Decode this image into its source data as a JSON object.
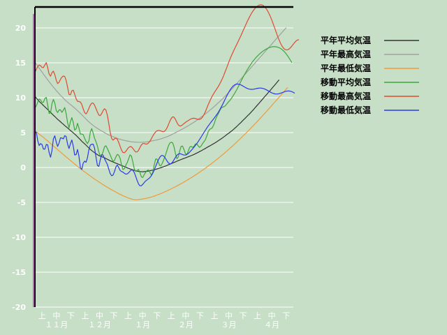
{
  "chart_data": {
    "type": "line",
    "ylim": [
      -20,
      23
    ],
    "yticks": [
      -20,
      -15,
      -10,
      -5,
      0,
      5,
      10,
      15,
      20
    ],
    "x_day_count": 183,
    "x_sub_labels": [
      "上",
      "中",
      "下",
      "上",
      "中",
      "下",
      "上",
      "中",
      "下",
      "上",
      "中",
      "下",
      "上",
      "中",
      "下",
      "上",
      "中",
      "下"
    ],
    "x_month_labels": [
      "１１月",
      "１２月",
      "１月",
      "２月",
      "３月",
      "４月"
    ],
    "legend_position": "right",
    "series": [
      {
        "name": "平年平均気温",
        "color": "#333333",
        "values": [
          10.2,
          9.95,
          9.7,
          9.48,
          9.28,
          9.09,
          8.88,
          8.69,
          8.49,
          8.3,
          8.1,
          7.89,
          7.69,
          7.49,
          7.3,
          7.1,
          6.9,
          6.73,
          6.55,
          6.37,
          6.19,
          6.01,
          5.84,
          5.67,
          5.49,
          5.31,
          5.14,
          4.96,
          4.79,
          4.6,
          4.39,
          4.19,
          3.98,
          3.76,
          3.58,
          3.39,
          3.2,
          3,
          2.8,
          2.6,
          2.43,
          2.27,
          2.12,
          1.99,
          1.84,
          1.72,
          1.62,
          1.54,
          1.48,
          1.4,
          1.29,
          1.18,
          1.08,
          0.97,
          0.88,
          0.79,
          0.71,
          0.62,
          0.54,
          0.46,
          0.37,
          0.29,
          0.21,
          0.13,
          0.05,
          -0.04,
          -0.13,
          -0.2,
          -0.28,
          -0.35,
          -0.41,
          -0.47,
          -0.52,
          -0.56,
          -0.58,
          -0.6,
          -0.61,
          -0.59,
          -0.56,
          -0.54,
          -0.51,
          -0.46,
          -0.42,
          -0.38,
          -0.33,
          -0.27,
          -0.2,
          -0.14,
          -0.07,
          0,
          0.07,
          0.14,
          0.21,
          0.3,
          0.39,
          0.47,
          0.55,
          0.64,
          0.73,
          0.81,
          0.9,
          0.99,
          1.07,
          1.15,
          1.23,
          1.3,
          1.38,
          1.46,
          1.54,
          1.62,
          1.7,
          1.78,
          1.87,
          1.97,
          2.07,
          2.17,
          2.28,
          2.39,
          2.5,
          2.61,
          2.73,
          2.85,
          2.97,
          3.08,
          3.19,
          3.31,
          3.43,
          3.55,
          3.68,
          3.82,
          3.95,
          4.09,
          4.23,
          4.38,
          4.53,
          4.7,
          4.85,
          4.99,
          5.15,
          5.31,
          5.48,
          5.67,
          5.85,
          6.05,
          6.24,
          6.43,
          6.64,
          6.84,
          7.04,
          7.25,
          7.46,
          7.66,
          7.87,
          8.09,
          8.31,
          8.55,
          8.78,
          9.02,
          9.24,
          9.48,
          9.72,
          9.95,
          10.19,
          10.42,
          10.65,
          10.89,
          11.12,
          11.36,
          11.6,
          11.84,
          12.08,
          12.33,
          12.56
        ]
      },
      {
        "name": "平年最高気温",
        "color": "#a0a0a0",
        "values": [
          15.1,
          14.81,
          14.53,
          14.23,
          13.95,
          13.66,
          13.38,
          13.1,
          12.83,
          12.56,
          12.29,
          12.03,
          11.78,
          11.52,
          11.29,
          11.03,
          10.8,
          10.57,
          10.35,
          10.14,
          9.94,
          9.73,
          9.54,
          9.36,
          9.18,
          9.02,
          8.86,
          8.69,
          8.51,
          8.33,
          8.14,
          7.95,
          7.76,
          7.56,
          7.35,
          7.14,
          6.93,
          6.73,
          6.54,
          6.36,
          6.19,
          6.03,
          5.87,
          5.74,
          5.6,
          5.48,
          5.35,
          5.24,
          5.12,
          5,
          4.88,
          4.77,
          4.67,
          4.59,
          4.5,
          4.42,
          4.33,
          4.25,
          4.18,
          4.11,
          4.04,
          3.98,
          3.93,
          3.88,
          3.84,
          3.8,
          3.76,
          3.72,
          3.69,
          3.67,
          3.65,
          3.64,
          3.63,
          3.62,
          3.62,
          3.62,
          3.62,
          3.63,
          3.65,
          3.68,
          3.71,
          3.75,
          3.8,
          3.84,
          3.87,
          3.92,
          3.96,
          4.01,
          4.07,
          4.12,
          4.19,
          4.26,
          4.33,
          4.41,
          4.49,
          4.58,
          4.68,
          4.78,
          4.89,
          4.99,
          5.1,
          5.2,
          5.31,
          5.42,
          5.52,
          5.63,
          5.75,
          5.87,
          5.99,
          6.11,
          6.23,
          6.36,
          6.49,
          6.63,
          6.78,
          6.92,
          7.07,
          7.22,
          7.37,
          7.52,
          7.68,
          7.84,
          8,
          8.17,
          8.34,
          8.51,
          8.69,
          8.87,
          9.05,
          9.24,
          9.43,
          9.62,
          9.82,
          10.02,
          10.22,
          10.43,
          10.64,
          10.86,
          11.08,
          11.3,
          11.52,
          11.75,
          11.98,
          12.21,
          12.44,
          12.67,
          12.9,
          13.13,
          13.36,
          13.59,
          13.82,
          14.05,
          14.28,
          14.51,
          14.74,
          14.97,
          15.2,
          15.43,
          15.66,
          15.89,
          16.12,
          16.35,
          16.58,
          16.81,
          17.04,
          17.27,
          17.5,
          17.73,
          17.96,
          18.2,
          18.43,
          18.66,
          18.89,
          19.12,
          19.35,
          19.58,
          19.81,
          20.04
        ]
      },
      {
        "name": "平年最低気温",
        "color": "#f09a3a",
        "values": [
          5.3,
          5.12,
          4.95,
          4.79,
          4.63,
          4.47,
          4.31,
          4.14,
          3.97,
          3.8,
          3.62,
          3.44,
          3.26,
          3.09,
          2.91,
          2.74,
          2.56,
          2.39,
          2.21,
          2.04,
          1.86,
          1.69,
          1.52,
          1.35,
          1.18,
          1.01,
          0.84,
          0.67,
          0.5,
          0.33,
          0.16,
          0,
          -0.16,
          -0.31,
          -0.47,
          -0.62,
          -0.77,
          -0.92,
          -1.07,
          -1.22,
          -1.37,
          -1.51,
          -1.65,
          -1.79,
          -1.93,
          -2.06,
          -2.19,
          -2.32,
          -2.45,
          -2.58,
          -2.71,
          -2.83,
          -2.95,
          -3.07,
          -3.19,
          -3.3,
          -3.41,
          -3.52,
          -3.63,
          -3.74,
          -3.84,
          -3.94,
          -4.04,
          -4.13,
          -4.22,
          -4.3,
          -4.38,
          -4.45,
          -4.52,
          -4.57,
          -4.6,
          -4.62,
          -4.62,
          -4.6,
          -4.57,
          -4.54,
          -4.51,
          -4.47,
          -4.43,
          -4.38,
          -4.34,
          -4.29,
          -4.23,
          -4.17,
          -4.1,
          -4.03,
          -3.95,
          -3.87,
          -3.79,
          -3.71,
          -3.62,
          -3.53,
          -3.44,
          -3.35,
          -3.25,
          -3.15,
          -3.05,
          -2.95,
          -2.85,
          -2.75,
          -2.64,
          -2.53,
          -2.42,
          -2.31,
          -2.2,
          -2.08,
          -1.96,
          -1.84,
          -1.72,
          -1.6,
          -1.47,
          -1.34,
          -1.21,
          -1.08,
          -0.95,
          -0.81,
          -0.67,
          -0.53,
          -0.39,
          -0.25,
          -0.1,
          0.05,
          0.2,
          0.35,
          0.5,
          0.66,
          0.82,
          0.98,
          1.14,
          1.3,
          1.47,
          1.64,
          1.81,
          1.98,
          2.15,
          2.33,
          2.51,
          2.69,
          2.87,
          3.05,
          3.24,
          3.43,
          3.62,
          3.81,
          4,
          4.2,
          4.4,
          4.6,
          4.8,
          5,
          5.2,
          5.41,
          5.62,
          5.83,
          6.04,
          6.25,
          6.46,
          6.68,
          6.9,
          7.12,
          7.34,
          7.56,
          7.78,
          8.01,
          8.24,
          8.47,
          8.7,
          8.93,
          9.16,
          9.39,
          9.62,
          9.85,
          10.08,
          10.31,
          10.54,
          10.77,
          11,
          11.23,
          11.46
        ]
      },
      {
        "name": "移動平均気温",
        "color": "#3aa83a",
        "values": [
          8.5,
          8.85,
          9.38,
          9.81,
          9.67,
          9.33,
          9.35,
          9.89,
          10.04,
          8.91,
          7.75,
          7.82,
          9.14,
          9.75,
          9.22,
          8.17,
          7.87,
          8.26,
          8.25,
          7.9,
          8.22,
          8.59,
          7.73,
          6.41,
          5.69,
          6.56,
          7.14,
          6.45,
          5.36,
          5.55,
          6.33,
          5.66,
          4.78,
          4.8,
          4.72,
          4.17,
          3.73,
          3.43,
          3.82,
          5.04,
          5.58,
          4.93,
          4.17,
          3.71,
          3.06,
          2.22,
          1.69,
          1.69,
          2.27,
          2.96,
          3.12,
          2.71,
          2.26,
          1.82,
          1.29,
          0.89,
          1,
          1.52,
          1.87,
          1.78,
          1.3,
          0.4,
          -0.28,
          -0.16,
          0.33,
          0.69,
          1.25,
          1.81,
          1.63,
          0.74,
          -0.2,
          -0.58,
          -0.4,
          -0.29,
          -0.74,
          -1.36,
          -1.42,
          -1.01,
          -0.69,
          -0.43,
          -0.35,
          -0.72,
          -1.08,
          -0.7,
          0.37,
          1.2,
          1.21,
          0.7,
          0.26,
          0.31,
          0.76,
          1.28,
          1.81,
          2.46,
          3.09,
          3.49,
          3.63,
          3.53,
          2.95,
          1.93,
          1.25,
          1.54,
          2.41,
          3.04,
          3.06,
          2.55,
          1.98,
          1.86,
          2.35,
          2.91,
          3.03,
          2.89,
          3.02,
          3.36,
          3.38,
          3.09,
          2.88,
          3.07,
          3.41,
          3.68,
          3.97,
          4.5,
          5.1,
          5.46,
          5.56,
          5.71,
          6.16,
          6.76,
          7.26,
          7.65,
          8.07,
          8.46,
          8.65,
          8.7,
          8.83,
          9.08,
          9.33,
          9.54,
          9.79,
          10.09,
          10.41,
          10.74,
          11.1,
          11.49,
          11.9,
          12.31,
          12.7,
          13.09,
          13.46,
          13.81,
          14.15,
          14.47,
          14.78,
          15.07,
          15.34,
          15.59,
          15.82,
          16.03,
          16.23,
          16.41,
          16.58,
          16.73,
          16.86,
          16.98,
          17.09,
          17.17,
          17.24,
          17.29,
          17.31,
          17.31,
          17.29,
          17.24,
          17.16,
          17.05,
          16.91,
          16.73,
          16.52,
          16.27,
          15.99,
          15.68,
          15.35,
          15
        ]
      },
      {
        "name": "移動最高気温",
        "color": "#e04a30",
        "values": [
          13.6,
          14.07,
          14.49,
          14.68,
          14.58,
          14.34,
          14.32,
          14.69,
          15.03,
          14.3,
          13.39,
          13.08,
          13.6,
          13.81,
          13.3,
          12.52,
          12.03,
          12.21,
          12.63,
          12.94,
          13.11,
          13.03,
          12.48,
          11.49,
          10.47,
          10.42,
          10.99,
          11.08,
          10.5,
          9.84,
          9.49,
          9.45,
          9.38,
          9.02,
          8.41,
          7.86,
          7.68,
          7.98,
          8.49,
          8.94,
          9.22,
          9.23,
          8.93,
          8.46,
          7.94,
          7.51,
          7.43,
          7.71,
          8.15,
          8.42,
          8.24,
          7.5,
          6.35,
          5.09,
          4.17,
          3.92,
          4.1,
          4.23,
          4.06,
          3.6,
          3.02,
          2.5,
          2.16,
          2.12,
          2.31,
          2.6,
          2.86,
          3,
          2.96,
          2.74,
          2.44,
          2.23,
          2.23,
          2.47,
          2.87,
          3.24,
          3.43,
          3.43,
          3.36,
          3.37,
          3.51,
          3.77,
          4.12,
          4.5,
          4.84,
          5.1,
          5.26,
          5.32,
          5.29,
          5.21,
          5.14,
          5.16,
          5.33,
          5.67,
          6.13,
          6.62,
          7.03,
          7.26,
          7.2,
          6.88,
          6.45,
          6.1,
          5.95,
          5.98,
          6.12,
          6.3,
          6.46,
          6.6,
          6.73,
          6.86,
          6.97,
          7.04,
          7.06,
          7.02,
          6.95,
          6.89,
          6.89,
          6.99,
          7.21,
          7.55,
          7.99,
          8.48,
          8.98,
          9.45,
          9.88,
          10.27,
          10.62,
          10.94,
          11.25,
          11.57,
          11.92,
          12.31,
          12.74,
          13.22,
          13.74,
          14.27,
          14.81,
          15.33,
          15.83,
          16.3,
          16.74,
          17.16,
          17.58,
          18,
          18.42,
          18.86,
          19.31,
          19.77,
          20.23,
          20.68,
          21.11,
          21.52,
          21.9,
          22.24,
          22.54,
          22.8,
          23.01,
          23.17,
          23.27,
          23.31,
          23.28,
          23.17,
          22.99,
          22.73,
          22.4,
          22,
          21.54,
          21.03,
          20.48,
          19.91,
          19.33,
          18.77,
          18.25,
          17.79,
          17.41,
          17.12,
          16.93,
          16.85,
          16.87,
          16.98,
          17.17,
          17.41,
          17.68,
          17.93,
          18.14,
          18.28,
          18.32
        ]
      },
      {
        "name": "移動最低気温",
        "color": "#2a3ae8",
        "values": [
          5,
          5.05,
          3.8,
          3.15,
          3.43,
          3.28,
          2.63,
          2.63,
          3.3,
          3.24,
          2.16,
          1.48,
          2.43,
          4.09,
          4.54,
          3.67,
          3.02,
          3.52,
          4.25,
          4.22,
          4.1,
          4.56,
          4.44,
          3.34,
          2.72,
          3.4,
          3.95,
          3.06,
          1.8,
          1.85,
          2.58,
          1.63,
          -0.02,
          -0.29,
          0.62,
          0.91,
          0.74,
          1.39,
          2.58,
          3.2,
          3.34,
          3.34,
          2.77,
          1.52,
          0.29,
          0.16,
          1.07,
          1.84,
          1.77,
          1.27,
          0.86,
          0.44,
          -0.22,
          -0.84,
          -1.18,
          -1.1,
          -0.62,
          0.06,
          0.35,
          0.01,
          -0.43,
          -0.58,
          -0.66,
          -0.83,
          -0.95,
          -0.92,
          -0.75,
          -0.52,
          -0.34,
          -0.39,
          -0.73,
          -1.27,
          -1.87,
          -2.37,
          -2.62,
          -2.61,
          -2.41,
          -2.15,
          -1.93,
          -1.77,
          -1.62,
          -1.44,
          -1.18,
          -0.82,
          -0.37,
          0.13,
          0.64,
          1.11,
          1.48,
          1.7,
          1.73,
          1.57,
          1.28,
          0.94,
          0.66,
          0.52,
          0.57,
          0.79,
          1.12,
          1.47,
          1.76,
          1.93,
          1.98,
          1.93,
          1.84,
          1.78,
          1.78,
          1.86,
          2.01,
          2.21,
          2.43,
          2.66,
          2.9,
          3.16,
          3.43,
          3.72,
          4.03,
          4.35,
          4.68,
          5.01,
          5.33,
          5.64,
          5.94,
          6.22,
          6.49,
          6.75,
          7.01,
          7.28,
          7.56,
          7.87,
          8.21,
          8.58,
          8.97,
          9.38,
          9.8,
          10.21,
          10.6,
          10.96,
          11.28,
          11.54,
          11.74,
          11.88,
          11.95,
          11.96,
          11.92,
          11.84,
          11.73,
          11.61,
          11.49,
          11.38,
          11.29,
          11.23,
          11.2,
          11.2,
          11.22,
          11.26,
          11.31,
          11.35,
          11.38,
          11.38,
          11.36,
          11.31,
          11.23,
          11.13,
          11.02,
          10.9,
          10.78,
          10.68,
          10.6,
          10.55,
          10.53,
          10.54,
          10.58,
          10.64,
          10.72,
          10.8,
          10.87,
          10.93,
          10.96,
          10.96,
          10.93,
          10.86,
          10.76,
          10.64
        ]
      }
    ]
  }
}
